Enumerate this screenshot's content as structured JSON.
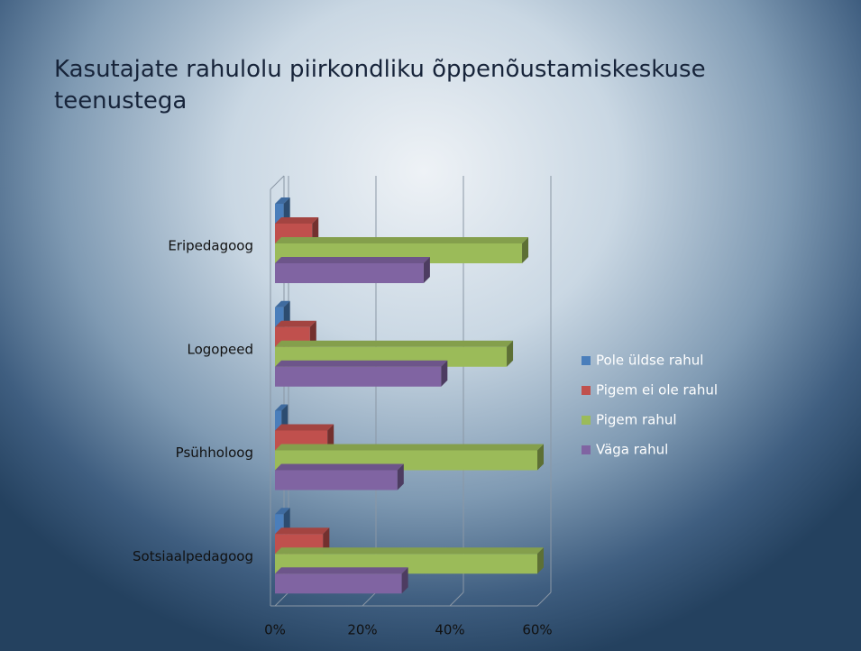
{
  "chart_data": {
    "type": "bar3d_horizontal",
    "title": "Kasutajate rahulolu piirkondliku õppenõustamiskeskuse teenustega",
    "categories": [
      "Eripedagoog",
      "Logopeed",
      "Psühholoog",
      "Sotsiaalpedagoog"
    ],
    "series": [
      {
        "name": "Pole üldse rahul",
        "color": "#4a7ebb",
        "values": [
          2,
          2,
          1.5,
          2
        ]
      },
      {
        "name": "Pigem ei ole rahul",
        "color": "#c0504d",
        "values": [
          8.5,
          8,
          12,
          11
        ]
      },
      {
        "name": "Pigem rahul",
        "color": "#9bbb59",
        "values": [
          56.5,
          53,
          60,
          60
        ]
      },
      {
        "name": "Väga rahul",
        "color": "#8064a2",
        "values": [
          34,
          38,
          28,
          29
        ]
      }
    ],
    "xlim": [
      0,
      60
    ],
    "xticks": [
      {
        "value": 0,
        "label": "0%"
      },
      {
        "value": 20,
        "label": "20%"
      },
      {
        "value": 40,
        "label": "40%"
      },
      {
        "value": 60,
        "label": "60%"
      }
    ],
    "grid": true,
    "legend": "right"
  }
}
